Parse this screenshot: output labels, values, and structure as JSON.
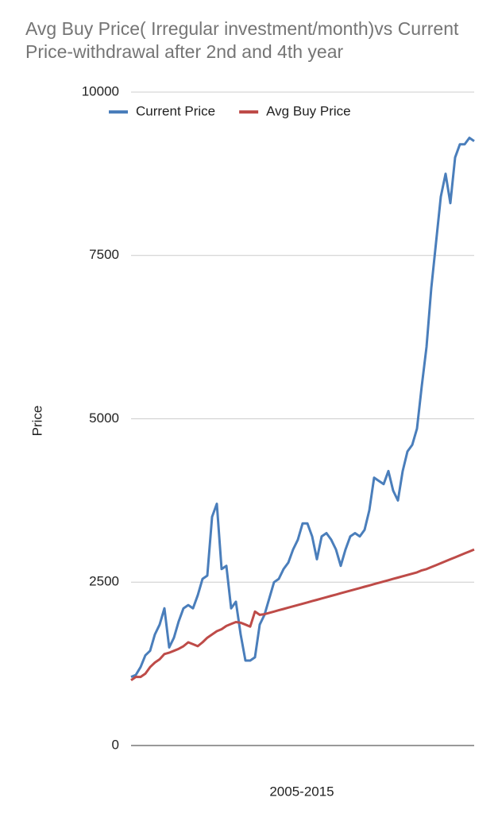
{
  "chart_data": {
    "type": "line",
    "title": "Avg Buy Price( Irregular investment/month)vs Current Price-withdrawal after 2nd and 4th year",
    "x_label": "2005-2015",
    "y_label": "Price",
    "categories": [
      null,
      null,
      null,
      null,
      null,
      null,
      null,
      null,
      null,
      null,
      null,
      null,
      null,
      null,
      null,
      null,
      null,
      null,
      null,
      null,
      null,
      null,
      null,
      null,
      null,
      null,
      null,
      null,
      null,
      null,
      null,
      null,
      null,
      null,
      null,
      null,
      null,
      null,
      null,
      null,
      null,
      null,
      null,
      null,
      null,
      null,
      null,
      null,
      null,
      null,
      null,
      null,
      null,
      null,
      null,
      null,
      null,
      null,
      null,
      null,
      null,
      null,
      null,
      null,
      null,
      null,
      null,
      null,
      null,
      null,
      null,
      null,
      null
    ],
    "series": [
      {
        "name": "Current Price",
        "color": "#4a7ebb",
        "values": [
          1050,
          1080,
          1200,
          1380,
          1450,
          1700,
          1850,
          2100,
          1500,
          1650,
          1900,
          2100,
          2150,
          2100,
          2300,
          2550,
          2600,
          3500,
          3700,
          2700,
          2750,
          2100,
          2200,
          1700,
          1300,
          1300,
          1350,
          1850,
          2000,
          2250,
          2500,
          2550,
          2700,
          2800,
          3000,
          3150,
          3400,
          3400,
          3200,
          2850,
          3200,
          3250,
          3150,
          3000,
          2750,
          3000,
          3200,
          3250,
          3200,
          3300,
          3600,
          4100,
          4050,
          4000,
          4200,
          3900,
          3750,
          4200,
          4500,
          4600,
          4850,
          5500,
          6100,
          7000,
          7700,
          8400,
          8750,
          8300,
          9000,
          9200,
          9200,
          9300,
          9250
        ]
      },
      {
        "name": "Avg Buy Price",
        "color": "#be4b48",
        "values": [
          1000,
          1050,
          1050,
          1100,
          1200,
          1270,
          1320,
          1400,
          1420,
          1450,
          1480,
          1520,
          1580,
          1550,
          1520,
          1580,
          1650,
          1700,
          1750,
          1780,
          1830,
          1860,
          1890,
          1880,
          1850,
          1820,
          2050,
          2000,
          2010,
          2030,
          2050,
          2070,
          2090,
          2110,
          2130,
          2150,
          2170,
          2190,
          2210,
          2230,
          2250,
          2270,
          2290,
          2310,
          2330,
          2350,
          2370,
          2390,
          2410,
          2430,
          2450,
          2470,
          2490,
          2510,
          2530,
          2550,
          2570,
          2590,
          2610,
          2630,
          2650,
          2680,
          2700,
          2730,
          2760,
          2790,
          2820,
          2850,
          2880,
          2910,
          2940,
          2970,
          3000
        ]
      }
    ],
    "ylim": [
      0,
      10000
    ],
    "yticks": [
      0,
      2500,
      5000,
      7500,
      10000
    ],
    "grid": true,
    "legend": "top"
  }
}
